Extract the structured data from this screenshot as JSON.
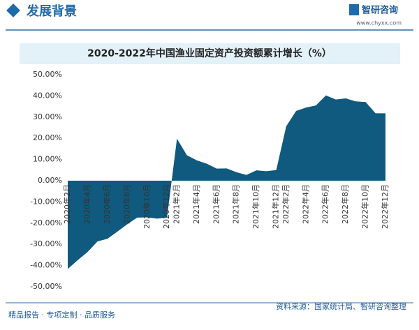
{
  "header": {
    "title": "发展背景",
    "logo": "智研咨询",
    "url": "www.chyxx.com"
  },
  "chart_data": {
    "type": "area",
    "title": "2020-2022年中国渔业固定资产投资额累计增长（%）",
    "categories": [
      "2020年2月",
      null,
      "2020年4月",
      null,
      "2020年6月",
      null,
      "2020年8月",
      null,
      "2020年10月",
      null,
      "2020年12月",
      "2021年2月",
      null,
      "2021年4月",
      null,
      "2021年6月",
      null,
      "2021年8月",
      null,
      "2021年10月",
      null,
      "2021年12月",
      "2022年2月",
      null,
      "2022年4月",
      null,
      "2022年6月",
      null,
      "2022年8月",
      null,
      "2022年10月",
      null,
      "2022年12月"
    ],
    "values": [
      -41.6,
      -37.5,
      -33.6,
      -28.6,
      -27.4,
      -24,
      -20.5,
      -17.4,
      -17.3,
      -17.9,
      -17.4,
      19.8,
      12,
      9.6,
      8,
      5.7,
      5.8,
      4,
      2.7,
      4.9,
      4.5,
      5,
      25.6,
      32.9,
      34.5,
      35.5,
      40.2,
      38.3,
      38.8,
      37.4,
      37.1,
      31.8,
      31.8
    ],
    "color": "#0f5a7e",
    "ylim": [
      -50,
      50
    ],
    "yticks": [
      {
        "value": -50,
        "label": "-50.00%"
      },
      {
        "value": -40,
        "label": "-40.00%"
      },
      {
        "value": -30,
        "label": "-30.00%"
      },
      {
        "value": -20,
        "label": "-20.00%"
      },
      {
        "value": -10,
        "label": "-10.00%"
      },
      {
        "value": 0,
        "label": "0.00%"
      },
      {
        "value": 10,
        "label": "10.00%"
      },
      {
        "value": 20,
        "label": "20.00%"
      },
      {
        "value": 30,
        "label": "30.00%"
      },
      {
        "value": 40,
        "label": "40.00%"
      },
      {
        "value": 50,
        "label": "50.00%"
      }
    ],
    "grid": false
  },
  "footer": {
    "left": "精品报告 · 专项定制 · 品质服务",
    "source": "资料来源：国家统计局、智研咨询整理"
  }
}
